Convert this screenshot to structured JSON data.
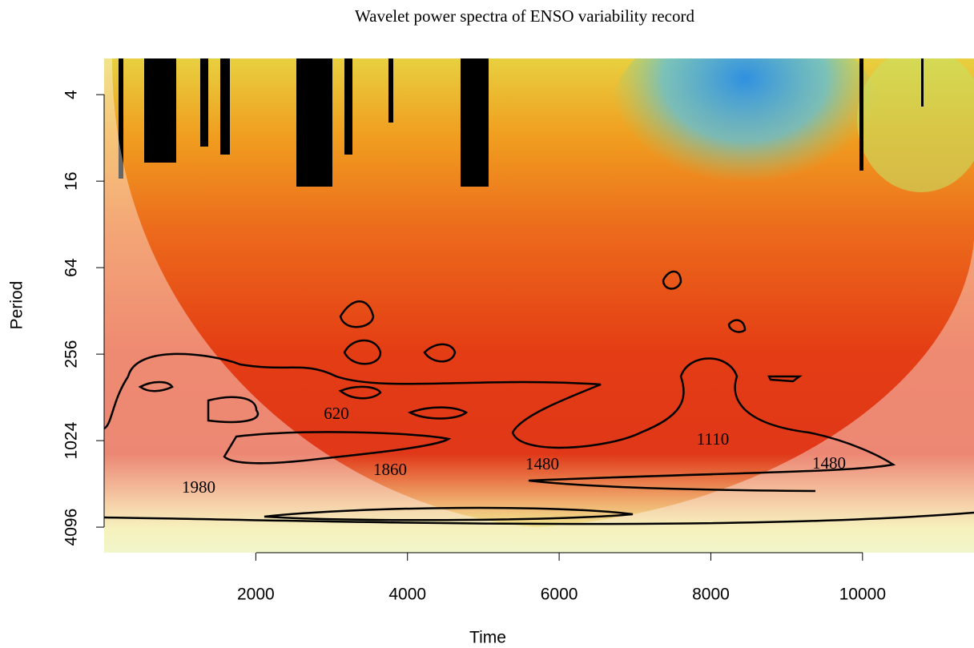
{
  "chart_data": {
    "type": "heatmap",
    "title": "Wavelet power spectra of ENSO variability record",
    "x_label": "Time",
    "y_label": "Period",
    "xlim": [
      0,
      11470
    ],
    "xticks": [
      2000,
      4000,
      6000,
      8000,
      10000
    ],
    "ylim": [
      2.24,
      6170
    ],
    "yticks": [
      4,
      16,
      64,
      256,
      1024,
      4096
    ],
    "y_scale": "log",
    "y_reversed": true,
    "annotations": [
      "620",
      "1860",
      "1480",
      "1110",
      "1480",
      "1980"
    ]
  }
}
